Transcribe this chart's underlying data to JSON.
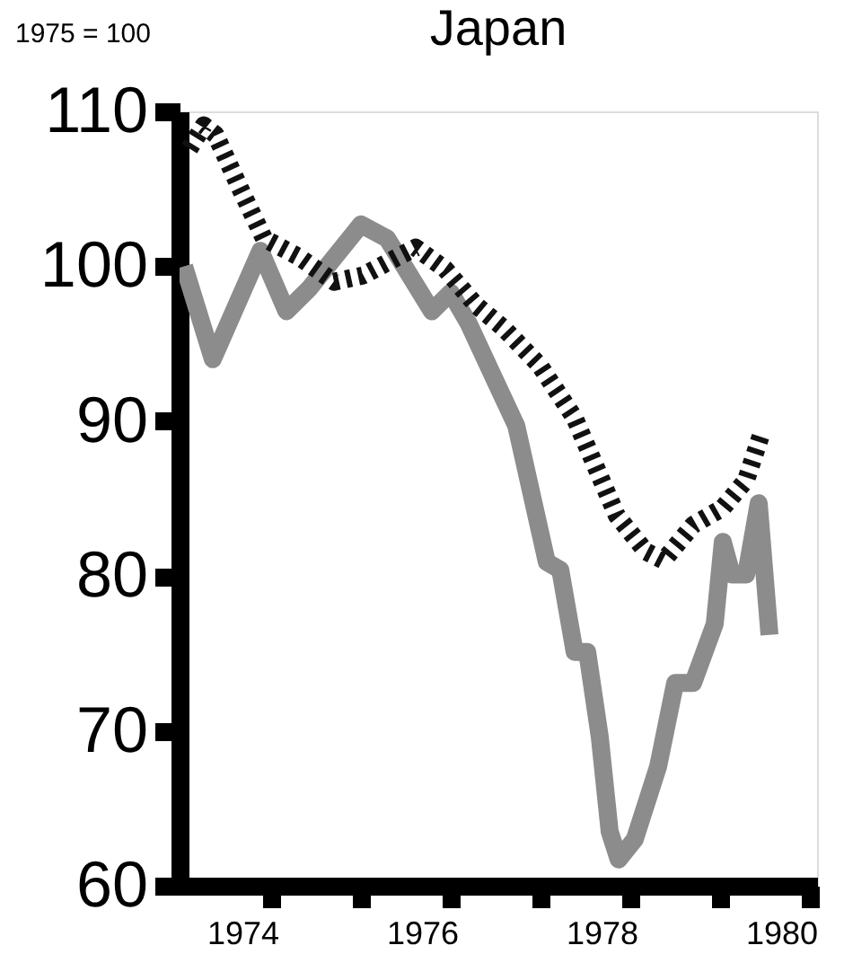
{
  "chart_data": {
    "type": "line",
    "title": "Japan",
    "ylabel": "1975 = 100",
    "xlim": [
      1973.3,
      1980.4
    ],
    "ylim": [
      60,
      110
    ],
    "yticks": [
      60,
      70,
      80,
      90,
      100,
      110
    ],
    "xticks": [
      {
        "value": 1974,
        "label": "1974"
      },
      {
        "value": 1976,
        "label": "1976"
      },
      {
        "value": 1978,
        "label": "1978"
      },
      {
        "value": 1980,
        "label": "1980"
      },
      {
        "value": 1974.33,
        "label": null
      },
      {
        "value": 1975.33,
        "label": null
      },
      {
        "value": 1976.33,
        "label": null
      },
      {
        "value": 1977.33,
        "label": null
      },
      {
        "value": 1978.33,
        "label": null
      },
      {
        "value": 1979.33,
        "label": null
      },
      {
        "value": 1980.33,
        "label": null
      }
    ],
    "grid": false,
    "legend": false,
    "marker": "none",
    "series": [
      {
        "color": "#8c8c8c",
        "line_style": "solid",
        "x": [
          1973.35,
          1973.67,
          1974.2,
          1974.49,
          1974.75,
          1975.32,
          1975.61,
          1976.11,
          1976.32,
          1976.52,
          1976.8,
          1977.05,
          1977.39,
          1977.54,
          1977.7,
          1977.84,
          1977.98,
          1978.09,
          1978.19,
          1978.37,
          1978.63,
          1978.82,
          1979.02,
          1979.26,
          1979.35,
          1979.45,
          1979.61,
          1979.75,
          1979.87
        ],
        "values": [
          100,
          94,
          101,
          97.1,
          98.6,
          102.7,
          101.8,
          97.1,
          98.3,
          96.3,
          92.8,
          89.7,
          80.9,
          80.4,
          75.1,
          75.1,
          69.6,
          63.5,
          61.7,
          63,
          67.7,
          73.1,
          73.1,
          76.9,
          82.2,
          80.1,
          80.1,
          84.7,
          76.2
        ]
      },
      {
        "color": "#111111",
        "line_style": "dotted",
        "x": [
          1973.41,
          1973.57,
          1973.7,
          1973.96,
          1974.24,
          1974.63,
          1975.02,
          1975.34,
          1975.73,
          1975.93,
          1976.26,
          1976.6,
          1976.91,
          1977.31,
          1977.7,
          1978.17,
          1978.49,
          1978.69,
          1979.02,
          1979.35,
          1979.61,
          1979.77
        ],
        "values": [
          107.6,
          109.1,
          108.5,
          105.2,
          101.8,
          100.6,
          99,
          99.4,
          100.6,
          101.2,
          99.8,
          97.5,
          96,
          93.6,
          90.2,
          83.9,
          81.6,
          81,
          83.3,
          84.4,
          86.2,
          89
        ]
      }
    ]
  }
}
